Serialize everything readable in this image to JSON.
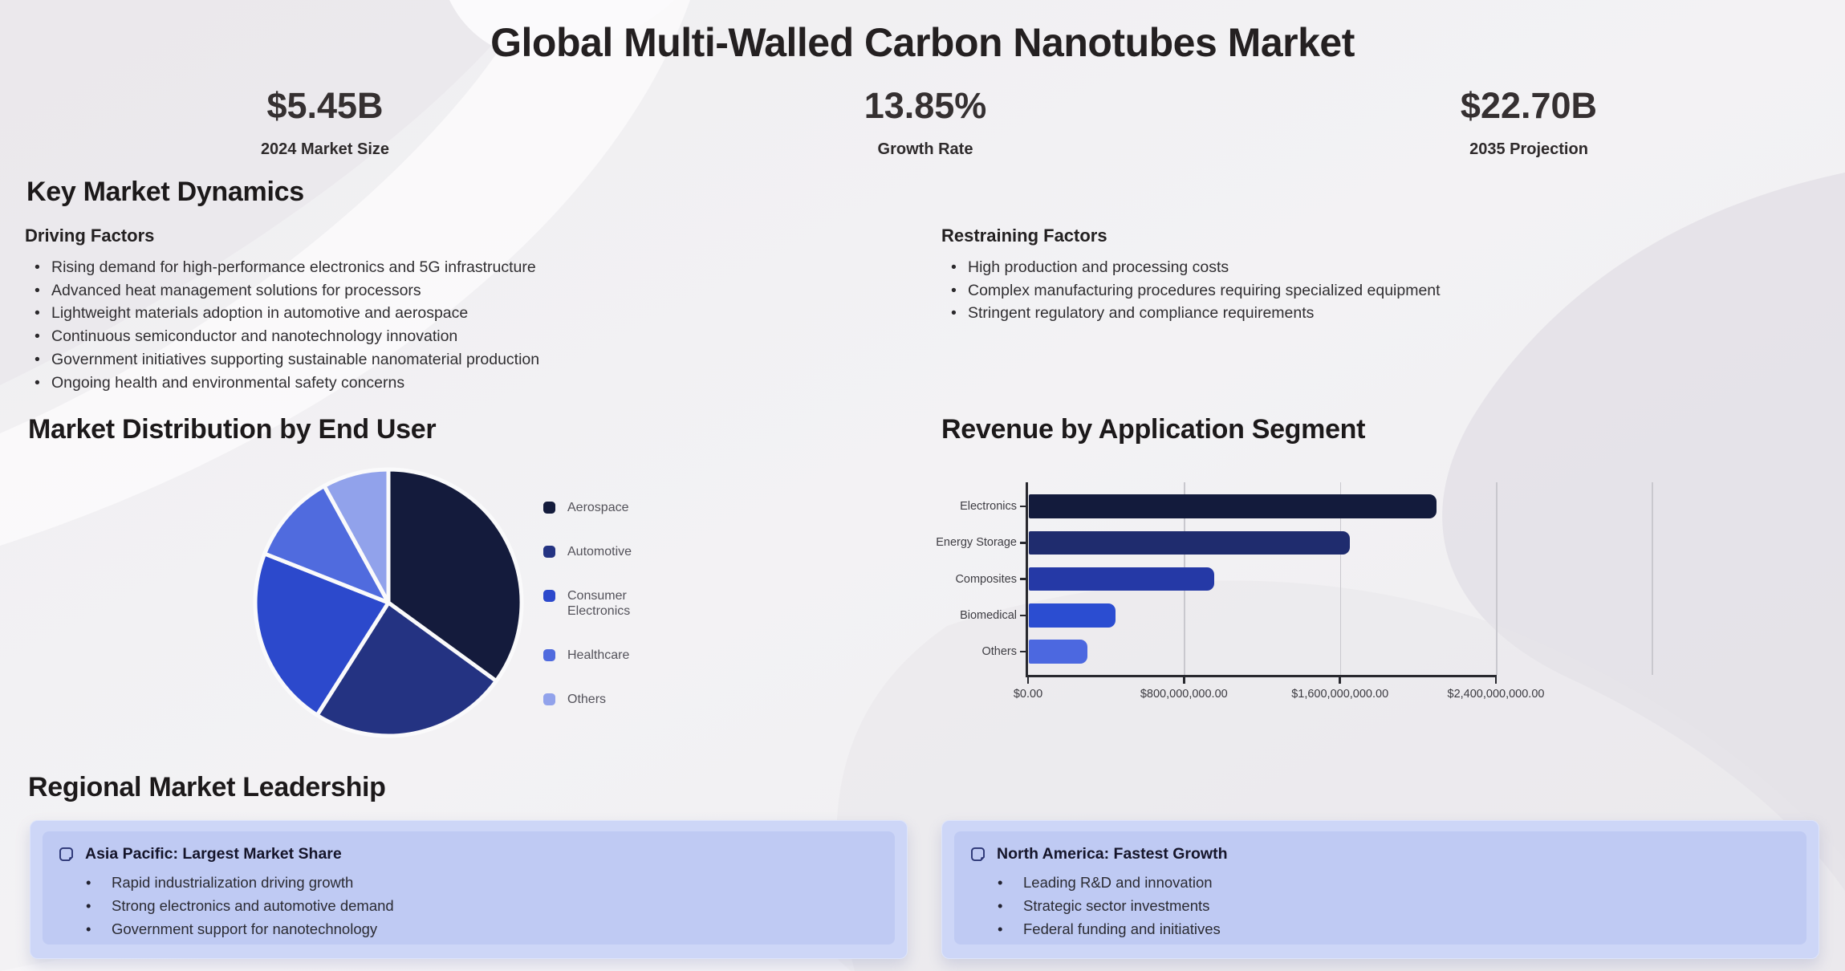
{
  "header": {
    "title": "Global Multi-Walled Carbon Nanotubes Market",
    "stats": [
      {
        "value": "$5.45B",
        "label": "2024 Market Size"
      },
      {
        "value": "13.85%",
        "label": "Growth Rate"
      },
      {
        "value": "$22.70B",
        "label": "2035 Projection"
      }
    ]
  },
  "dynamics": {
    "heading": "Key Market Dynamics",
    "driving": {
      "heading": "Driving Factors",
      "items": [
        "Rising demand for high-performance electronics and 5G infrastructure",
        "Advanced heat management solutions for processors",
        "Lightweight materials adoption in automotive and aerospace",
        "Continuous semiconductor and nanotechnology innovation",
        "Government initiatives supporting sustainable nanomaterial production",
        "Ongoing health and environmental safety concerns"
      ]
    },
    "restraining": {
      "heading": "Restraining Factors",
      "items": [
        "High production and processing costs",
        "Complex manufacturing procedures requiring specialized equipment",
        "Stringent regulatory and compliance requirements"
      ]
    }
  },
  "pie_section": {
    "heading": "Market Distribution by End User"
  },
  "bar_section": {
    "heading": "Revenue by Application Segment"
  },
  "chart_data": [
    {
      "type": "pie",
      "title": "Market Distribution by End User",
      "categories": [
        "Aerospace",
        "Automotive",
        "Consumer Electronics",
        "Healthcare",
        "Others"
      ],
      "values": [
        35,
        24,
        22,
        11,
        8
      ],
      "unit": "percent share (estimated from slice angles)",
      "colors": [
        "#141b3c",
        "#243382",
        "#2c49cc",
        "#506bde",
        "#91a2eb"
      ],
      "legend_position": "right",
      "start_angle": "12 o'clock, clockwise"
    },
    {
      "type": "bar",
      "orientation": "horizontal",
      "title": "Revenue by Application Segment",
      "categories": [
        "Electronics",
        "Energy Storage",
        "Composites",
        "Biomedical",
        "Others"
      ],
      "values": [
        2090000000,
        1645000000,
        950000000,
        445000000,
        300000000
      ],
      "colors": [
        "#131b3c",
        "#1f2c6e",
        "#2539a6",
        "#2b4dd1",
        "#4c68e0"
      ],
      "xlim": [
        0,
        2400000000
      ],
      "x_ticks": [
        {
          "value": 0,
          "label": "$0.00"
        },
        {
          "value": 800000000,
          "label": "$800,000,000.00"
        },
        {
          "value": 1600000000,
          "label": "$1,600,000,000.00"
        },
        {
          "value": 2400000000,
          "label": "$2,400,000,000.00"
        }
      ],
      "grid": true,
      "xlabel": "",
      "ylabel": ""
    }
  ],
  "regional": {
    "heading": "Regional Market Leadership",
    "cards": [
      {
        "title": "Asia Pacific: Largest Market Share",
        "items": [
          "Rapid industrialization driving growth",
          "Strong electronics and automotive demand",
          "Government support for nanotechnology"
        ]
      },
      {
        "title": "North America: Fastest Growth",
        "items": [
          "Leading R&D and innovation",
          "Strategic sector investments",
          "Federal funding and initiatives"
        ]
      }
    ]
  },
  "colors": {
    "card_background": "#cdd6f7",
    "card_inner_background": "#bfcaf3",
    "note_icon": "#2b3575",
    "heading_text": "#1c191a",
    "body_text": "#302e31"
  }
}
